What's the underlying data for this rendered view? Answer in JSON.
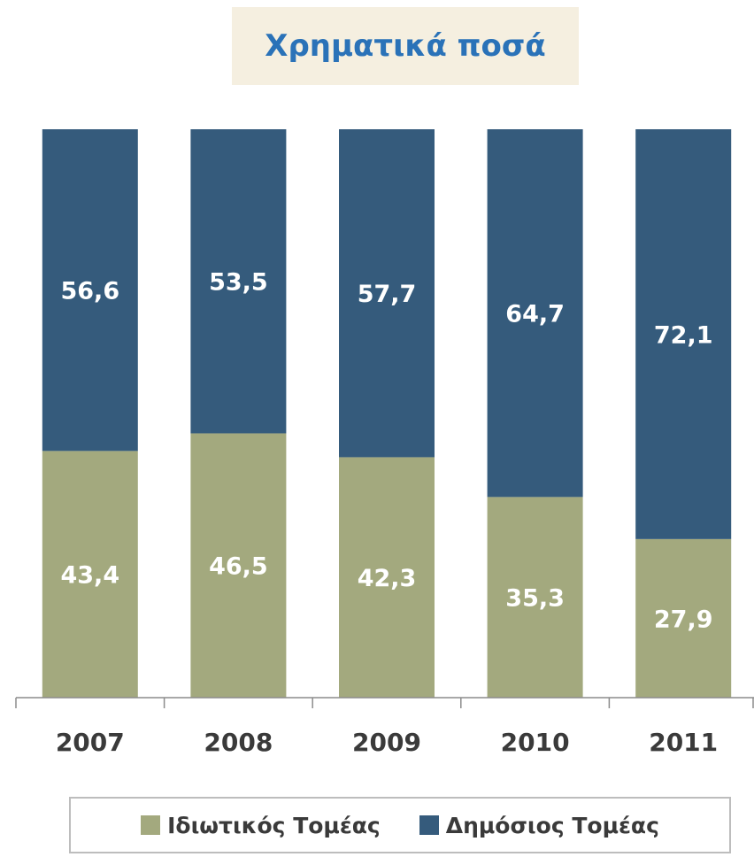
{
  "chart_data": {
    "type": "bar",
    "stacked": true,
    "title": "Χρηματικά ποσά",
    "categories": [
      "2007",
      "2008",
      "2009",
      "2010",
      "2011"
    ],
    "series": [
      {
        "name": "Ιδιωτικός Τομέας",
        "values": [
          43.4,
          46.5,
          42.3,
          35.3,
          27.9
        ],
        "color": "#a3a97e"
      },
      {
        "name": "Δημόσιος Τομέας",
        "values": [
          56.6,
          53.5,
          57.7,
          64.7,
          72.1
        ],
        "color": "#355b7c"
      }
    ],
    "data_labels": [
      [
        "43,4",
        "46,5",
        "42,3",
        "35,3",
        "27,9"
      ],
      [
        "56,6",
        "53,5",
        "57,7",
        "64,7",
        "72,1"
      ]
    ],
    "ylim": [
      0,
      100
    ],
    "grid": false,
    "legend_position": "bottom"
  }
}
